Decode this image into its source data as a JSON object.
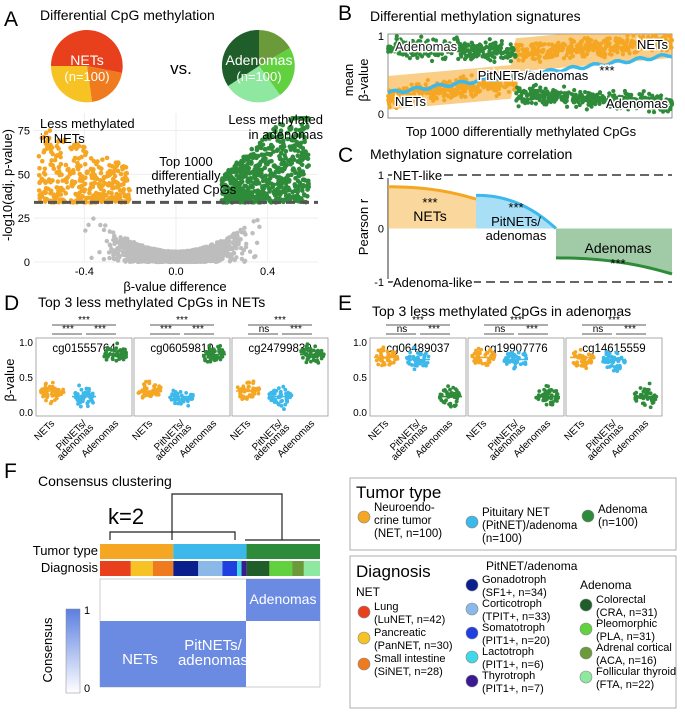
{
  "colors": {
    "net": "#f5a623",
    "pitnet": "#3db8ea",
    "adenoma": "#2e8b3a",
    "grey": "#bdbdbd",
    "kcolor": "#5b7fe0",
    "luNET": "#e8401c",
    "panNET": "#f7c324",
    "siNET": "#f07a1e",
    "gonad": "#0b1f8c",
    "cortico": "#8ab8e8",
    "somato": "#1f3fe0",
    "lacto": "#3fd8e8",
    "thyro": "#3a1a90",
    "cra": "#1f5e2a",
    "pla": "#62d13f",
    "aca": "#6b9a3a",
    "fta": "#8fe8a0"
  },
  "panelA": {
    "letter": "A",
    "title": "Differential CpG methylation",
    "pie1": "NETs",
    "pie1n": "(n=100)",
    "vs": "vs.",
    "pie2": "Adenomas",
    "pie2n": "(n=100)",
    "less_nets1": "Less methylated",
    "less_nets2": "in NETs",
    "less_aden1": "Less methylated",
    "less_aden2": "in adenomas",
    "top1": "Top 1000",
    "top2": "differentially",
    "top3": "methylated CpGs",
    "ylabel": "-log10(adj. p-value)",
    "xlabel": "β-value difference"
  },
  "panelB": {
    "letter": "B",
    "title": "Differential methylation signatures",
    "ylabel1": "mean",
    "ylabel2": "β-value",
    "xlabel": "Top 1000 differentially methylated CpGs",
    "adenomas": "Adenomas",
    "nets": "NETs",
    "pitnets": "PitNETs/adenomas",
    "stars": "***",
    "nets_bottom": "NETs",
    "adenomas_bottom": "Adenomas"
  },
  "panelC": {
    "letter": "C",
    "title": "Methylation signature correlation",
    "ylabel": "Pearson r",
    "netlike": "NET-like",
    "adenlike": "Adenoma-like",
    "nets": "NETs",
    "pit1": "PitNETs/",
    "pit2": "adenomas",
    "adenomas": "Adenomas",
    "stars": "***"
  },
  "panelD": {
    "letter": "D",
    "title": "Top 3 less methylated CpGs in NETs",
    "ylabel": "β-value",
    "groups": [
      "NETs",
      "PitNETs/",
      "adenomas",
      "Adenomas"
    ],
    "cpgs": [
      {
        "name": "cg01555764",
        "sig": [
          "***",
          "***",
          "***"
        ]
      },
      {
        "name": "cg06059810",
        "sig": [
          "***",
          "***",
          "***"
        ]
      },
      {
        "name": "cg24799830",
        "sig": [
          "***",
          "ns",
          "***"
        ]
      }
    ]
  },
  "panelE": {
    "letter": "E",
    "title": "Top 3 less methylated CpGs in adenomas",
    "groups": [
      "NETs",
      "PitNETs/",
      "adenomas",
      "Adenomas"
    ],
    "cpgs": [
      {
        "name": "cg06489037",
        "sig": [
          "***",
          "ns",
          "***"
        ]
      },
      {
        "name": "cg19907776",
        "sig": [
          "***",
          "ns",
          "***"
        ]
      },
      {
        "name": "cg14615559",
        "sig": [
          "***",
          "ns",
          "***"
        ]
      }
    ]
  },
  "panelF": {
    "letter": "F",
    "title": "Consensus clustering",
    "k": "k=2",
    "tumor_type": "Tumor type",
    "diagnosis": "Diagnosis",
    "consensus": "Consensus",
    "c1": "1",
    "c0": "0",
    "adenomas": "Adenomas",
    "nets": "NETs",
    "pit1": "PitNETs/",
    "pit2": "adenomas"
  },
  "legend_tumor": {
    "title": "Tumor type",
    "items": [
      {
        "l1": "Neuroendo-",
        "l2": "crine tumor",
        "l3": "(NET, n=100)"
      },
      {
        "l1": "Pituitary NET",
        "l2": "(PitNET)/adenoma",
        "l3": "(n=100)"
      },
      {
        "l1": "Adenoma",
        "l2": "(n=100)",
        "l3": ""
      }
    ]
  },
  "legend_diag": {
    "title": "Diagnosis",
    "net_head": "NET",
    "pit_head": "PitNET/adenoma",
    "aden_head": "Adenoma",
    "net": [
      {
        "l1": "Lung",
        "l2": "(LuNET, n=42)"
      },
      {
        "l1": "Pancreatic",
        "l2": "(PanNET, n=30)"
      },
      {
        "l1": "Small intestine",
        "l2": "(SiNET, n=28)"
      }
    ],
    "pit": [
      {
        "l1": "Gonadotroph",
        "l2": "(SF1+, n=34)"
      },
      {
        "l1": "Corticotroph",
        "l2": "(TPIT+, n=33)"
      },
      {
        "l1": "Somatotroph",
        "l2": "(PIT1+, n=20)"
      },
      {
        "l1": "Lactotroph",
        "l2": "(PIT1+, n=6)"
      },
      {
        "l1": "Thyrotroph",
        "l2": "(PIT1+, n=7)"
      }
    ],
    "aden": [
      {
        "l1": "Colorectal",
        "l2": "(CRA, n=31)"
      },
      {
        "l1": "Pleomorphic",
        "l2": "(PLA, n=31)"
      },
      {
        "l1": "Adrenal cortical",
        "l2": "(ACA, n=16)"
      },
      {
        "l1": "Follicular thyroid",
        "l2": "(FTA, n=22)"
      }
    ]
  },
  "chart_data": [
    {
      "type": "scatter",
      "panel": "A",
      "title": "Differential CpG methylation",
      "xlabel": "β-value difference",
      "ylabel": "-log10(adj. p-value)",
      "xticks": [
        "-0.4",
        "0.0",
        "0.4"
      ],
      "yticks": [
        "0",
        "25",
        "50",
        "75"
      ],
      "xlim": [
        -0.62,
        0.62
      ],
      "ylim": [
        0,
        85
      ],
      "threshold": 34
    },
    {
      "type": "scatter",
      "panel": "B",
      "title": "Differential methylation signatures",
      "xlabel": "Top 1000 differentially methylated CpGs",
      "ylabel": "mean β-value",
      "yticks": [
        "0",
        "1"
      ],
      "ylim": [
        0,
        1
      ]
    },
    {
      "type": "area",
      "panel": "C",
      "title": "Methylation signature correlation",
      "ylabel": "Pearson r",
      "yticks": [
        "-1",
        "0",
        "1"
      ],
      "ylim": [
        -1,
        1
      ],
      "series": [
        {
          "name": "NETs",
          "start": 0.78,
          "end": 0.55
        },
        {
          "name": "PitNETs/adenomas",
          "start": 0.62,
          "end": 0.0
        },
        {
          "name": "Adenomas",
          "start": -0.55,
          "end": -0.85
        }
      ]
    }
  ]
}
